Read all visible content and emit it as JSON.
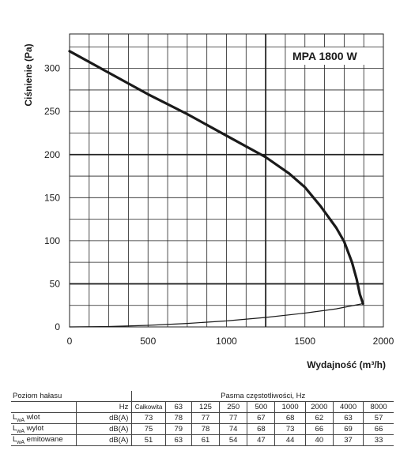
{
  "chart_data": {
    "type": "line",
    "annotation": "MPA 1800 W",
    "xlabel": "Wydajność (m³/h)",
    "ylabel": "Ciśnienie (Pa)",
    "xlim": [
      0,
      2000
    ],
    "ylim": [
      0,
      340
    ],
    "xticks": [
      "0",
      "500",
      "1000",
      "1500",
      "2000"
    ],
    "yticks": [
      "0",
      "50",
      "100",
      "150",
      "200",
      "250",
      "300"
    ],
    "grid": true,
    "series": [
      {
        "role": "fan-curve",
        "x": [
          0,
          250,
          500,
          750,
          1000,
          1250,
          1400,
          1500,
          1600,
          1700,
          1750,
          1800,
          1830,
          1850,
          1870
        ],
        "y": [
          320,
          295,
          270,
          247,
          222,
          197,
          178,
          162,
          140,
          115,
          99,
          75,
          55,
          38,
          27
        ]
      },
      {
        "role": "system-curve",
        "x": [
          0,
          250,
          500,
          750,
          1000,
          1250,
          1500,
          1700,
          1870
        ],
        "y": [
          0,
          0.5,
          1.8,
          4,
          7,
          11,
          16,
          21,
          27
        ]
      }
    ]
  },
  "noise_table": {
    "header_label": "Poziom hałasu",
    "bands_title": "Pasma częstotliwości, Hz",
    "unit_header": "Hz",
    "columns": [
      "Całkowita",
      "63",
      "125",
      "250",
      "500",
      "1000",
      "2000",
      "4000",
      "8000"
    ],
    "rows": [
      {
        "label_main": "L",
        "label_sub": "wA",
        "label_rest": " wlot",
        "unit": "dB(A)",
        "values": [
          "73",
          "78",
          "77",
          "77",
          "67",
          "68",
          "62",
          "63",
          "57"
        ]
      },
      {
        "label_main": "L",
        "label_sub": "wA",
        "label_rest": " wylot",
        "unit": "dB(A)",
        "values": [
          "75",
          "79",
          "78",
          "74",
          "68",
          "73",
          "66",
          "69",
          "66"
        ]
      },
      {
        "label_main": "L",
        "label_sub": "wA",
        "label_rest": " emitowane",
        "unit": "dB(A)",
        "values": [
          "51",
          "63",
          "61",
          "54",
          "47",
          "44",
          "40",
          "37",
          "33"
        ]
      }
    ]
  }
}
